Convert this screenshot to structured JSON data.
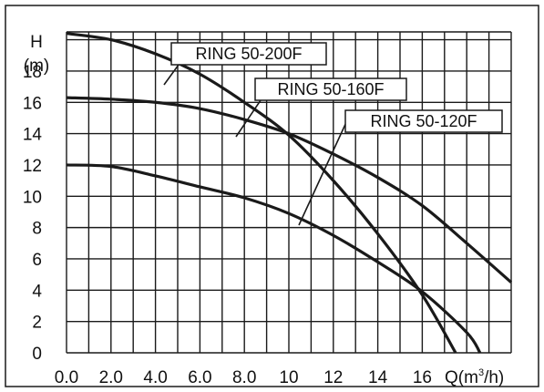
{
  "chart_data": {
    "type": "line",
    "title": "",
    "y_axis": {
      "label_top": "H",
      "label_unit": "(m)",
      "ticks": [
        "0",
        "2",
        "4",
        "6",
        "8",
        "10",
        "12",
        "14",
        "16",
        "18"
      ],
      "range": [
        0,
        20.5
      ]
    },
    "x_axis": {
      "label_prefix": "Q(m",
      "label_sup": "3",
      "label_suffix": "/h)",
      "ticks": [
        "0.0",
        "2.0",
        "4.0",
        "6.0",
        "8.0",
        "10",
        "12",
        "14",
        "16"
      ],
      "range": [
        0,
        20
      ]
    },
    "grid": true,
    "series": [
      {
        "name": "RING 50-200F",
        "points": [
          [
            0,
            20.4
          ],
          [
            2,
            20.0
          ],
          [
            4,
            19.1
          ],
          [
            6,
            17.8
          ],
          [
            8,
            16.0
          ],
          [
            10,
            13.9
          ],
          [
            12,
            11.0
          ],
          [
            14,
            7.6
          ],
          [
            16,
            3.7
          ],
          [
            17.5,
            0
          ]
        ]
      },
      {
        "name": "RING 50-160F",
        "points": [
          [
            0,
            16.3
          ],
          [
            2,
            16.2
          ],
          [
            4,
            16.0
          ],
          [
            6,
            15.6
          ],
          [
            8,
            14.9
          ],
          [
            10,
            14.0
          ],
          [
            12,
            12.7
          ],
          [
            14,
            11.2
          ],
          [
            16,
            9.4
          ],
          [
            18,
            7.0
          ],
          [
            20,
            4.5
          ]
        ]
      },
      {
        "name": "RING 50-120F",
        "points": [
          [
            0,
            12.0
          ],
          [
            2,
            11.9
          ],
          [
            4,
            11.3
          ],
          [
            6,
            10.6
          ],
          [
            8,
            9.9
          ],
          [
            10,
            8.9
          ],
          [
            12,
            7.5
          ],
          [
            14,
            5.8
          ],
          [
            16,
            3.9
          ],
          [
            18,
            1.3
          ],
          [
            18.6,
            0
          ]
        ]
      }
    ],
    "colors": {
      "line": "#1a1a1a",
      "grid": "#1a1a1a",
      "background": "#ffffff"
    }
  }
}
